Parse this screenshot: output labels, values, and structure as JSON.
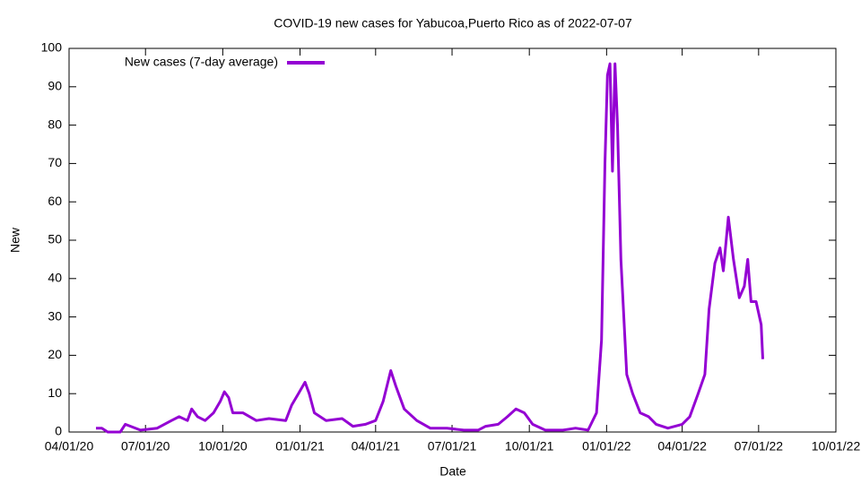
{
  "chart_data": {
    "type": "line",
    "title": "COVID-19 new cases for Yabucoa,Puerto Rico as of 2022-07-07",
    "x_label": "Date",
    "y_label": "New",
    "legend": "top-left",
    "xlim": [
      "2020-04-01",
      "2022-10-01"
    ],
    "xticks": [
      {
        "value": "2020-04-01",
        "label": "04/01/20"
      },
      {
        "value": "2020-07-01",
        "label": "07/01/20"
      },
      {
        "value": "2020-10-01",
        "label": "10/01/20"
      },
      {
        "value": "2021-01-01",
        "label": "01/01/21"
      },
      {
        "value": "2021-04-01",
        "label": "04/01/21"
      },
      {
        "value": "2021-07-01",
        "label": "07/01/21"
      },
      {
        "value": "2021-10-01",
        "label": "10/01/21"
      },
      {
        "value": "2022-01-01",
        "label": "01/01/22"
      },
      {
        "value": "2022-04-01",
        "label": "04/01/22"
      },
      {
        "value": "2022-07-01",
        "label": "07/01/22"
      },
      {
        "value": "2022-10-01",
        "label": "10/01/22"
      }
    ],
    "ylim": [
      0,
      100
    ],
    "yticks": [
      0,
      10,
      20,
      30,
      40,
      50,
      60,
      70,
      80,
      90,
      100
    ],
    "x": [
      "2020-05-03",
      "2020-05-10",
      "2020-05-17",
      "2020-06-01",
      "2020-06-07",
      "2020-06-25",
      "2020-07-15",
      "2020-08-01",
      "2020-08-10",
      "2020-08-20",
      "2020-08-25",
      "2020-09-01",
      "2020-09-10",
      "2020-09-20",
      "2020-09-28",
      "2020-10-03",
      "2020-10-08",
      "2020-10-13",
      "2020-10-25",
      "2020-11-10",
      "2020-11-25",
      "2020-12-15",
      "2020-12-22",
      "2020-12-30",
      "2021-01-07",
      "2021-01-12",
      "2021-01-18",
      "2021-02-01",
      "2021-02-20",
      "2021-03-05",
      "2021-03-20",
      "2021-04-01",
      "2021-04-10",
      "2021-04-19",
      "2021-04-25",
      "2021-05-05",
      "2021-05-20",
      "2021-06-05",
      "2021-06-25",
      "2021-07-15",
      "2021-08-01",
      "2021-08-10",
      "2021-08-25",
      "2021-09-05",
      "2021-09-15",
      "2021-09-25",
      "2021-10-05",
      "2021-10-20",
      "2021-11-10",
      "2021-11-25",
      "2021-12-10",
      "2021-12-20",
      "2021-12-26",
      "2021-12-30",
      "2022-01-02",
      "2022-01-05",
      "2022-01-08",
      "2022-01-11",
      "2022-01-14",
      "2022-01-18",
      "2022-01-25",
      "2022-02-01",
      "2022-02-10",
      "2022-02-20",
      "2022-03-01",
      "2022-03-15",
      "2022-04-01",
      "2022-04-10",
      "2022-04-20",
      "2022-04-28",
      "2022-05-03",
      "2022-05-10",
      "2022-05-16",
      "2022-05-20",
      "2022-05-26",
      "2022-06-01",
      "2022-06-08",
      "2022-06-14",
      "2022-06-18",
      "2022-06-22",
      "2022-06-28",
      "2022-07-04",
      "2022-07-06"
    ],
    "series": [
      {
        "name": "New cases (7-day average)",
        "color": "#9400d3",
        "values": [
          1,
          1,
          0,
          0,
          2,
          0.5,
          1,
          3,
          4,
          3,
          6,
          4,
          3,
          5,
          8,
          10.5,
          9,
          5,
          5,
          3,
          3.5,
          3,
          7,
          10,
          13,
          10,
          5,
          3,
          3.5,
          1.5,
          2,
          3,
          8,
          16,
          12,
          6,
          3,
          1,
          1,
          0.5,
          0.5,
          1.5,
          2,
          4,
          6,
          5,
          2,
          0.5,
          0.5,
          1,
          0.5,
          5,
          24,
          70,
          93,
          96,
          68,
          96,
          80,
          45,
          15,
          10,
          5,
          4,
          2,
          1,
          2,
          4,
          10,
          15,
          32,
          44,
          48,
          42,
          56,
          45,
          35,
          38,
          45,
          34,
          34,
          28,
          19
        ]
      }
    ]
  }
}
